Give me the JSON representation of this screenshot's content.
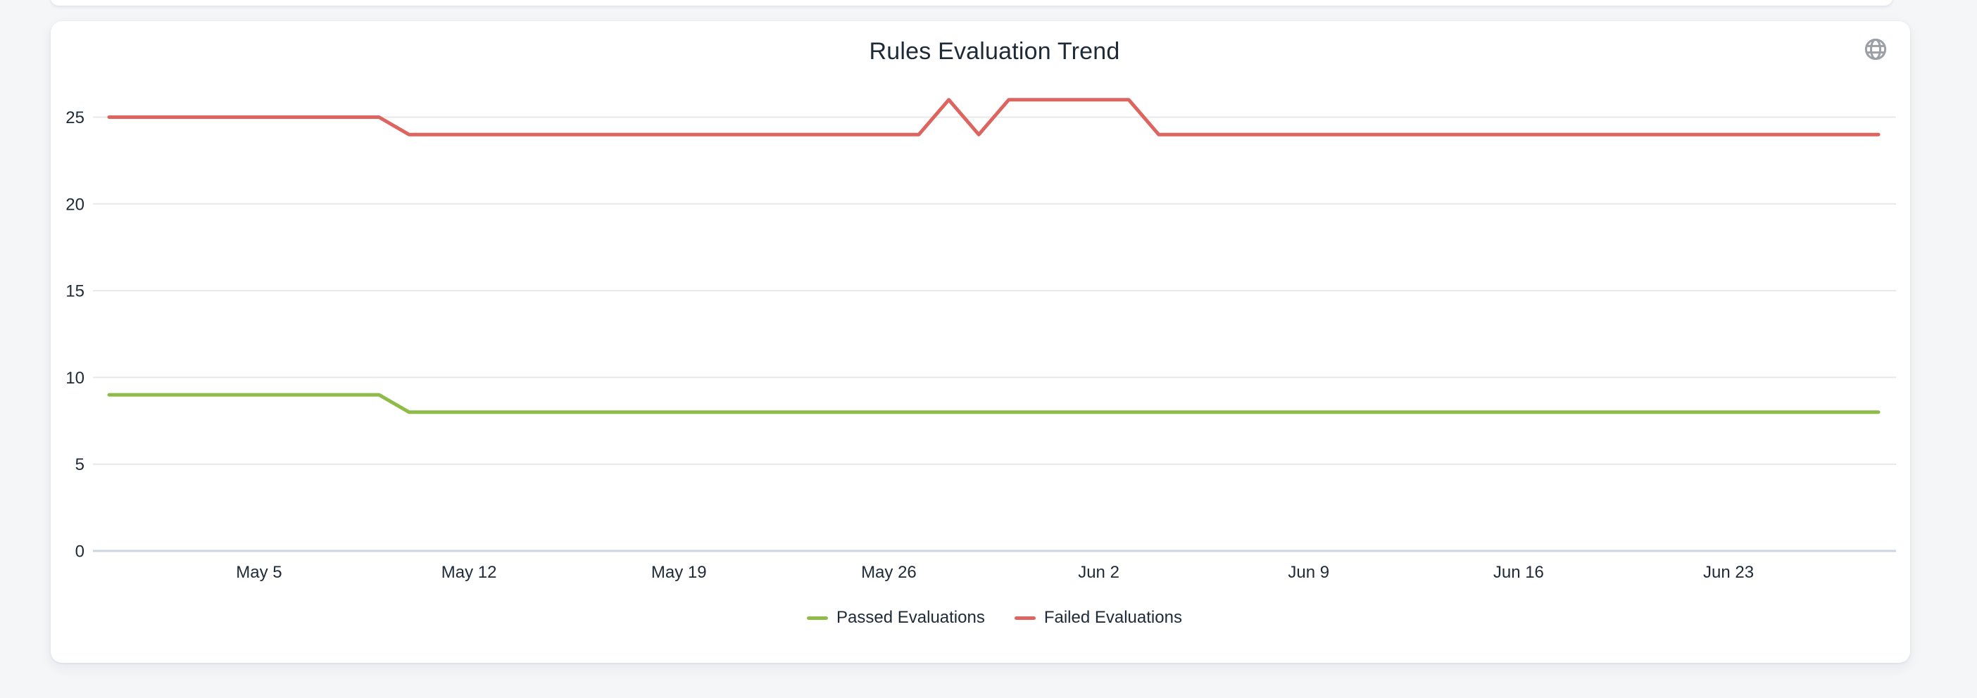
{
  "theme": {
    "page_background": "#f4f6f8",
    "card_background": "#ffffff",
    "text_color": "#1e2a38",
    "icon_color": "#9aa0a6"
  },
  "card": {
    "header_icon": "globe-icon"
  },
  "chart_data": {
    "type": "line",
    "title": "Rules Evaluation Trend",
    "xlabel": "",
    "ylabel": "",
    "grid": true,
    "legend_position": "bottom",
    "gridline_color": "#e8e8e8",
    "baseline_color": "#cbd6e2",
    "ylim": [
      0,
      26.5
    ],
    "yticks": [
      0,
      5,
      10,
      15,
      20,
      25
    ],
    "x": [
      "Apr 30",
      "May 1",
      "May 2",
      "May 3",
      "May 4",
      "May 5",
      "May 6",
      "May 7",
      "May 8",
      "May 9",
      "May 10",
      "May 11",
      "May 12",
      "May 13",
      "May 14",
      "May 15",
      "May 16",
      "May 17",
      "May 18",
      "May 19",
      "May 20",
      "May 21",
      "May 22",
      "May 23",
      "May 24",
      "May 25",
      "May 26",
      "May 27",
      "May 28",
      "May 29",
      "May 30",
      "May 31",
      "Jun 1",
      "Jun 2",
      "Jun 3",
      "Jun 4",
      "Jun 5",
      "Jun 6",
      "Jun 7",
      "Jun 8",
      "Jun 9",
      "Jun 10",
      "Jun 11",
      "Jun 12",
      "Jun 13",
      "Jun 14",
      "Jun 15",
      "Jun 16",
      "Jun 17",
      "Jun 18",
      "Jun 19",
      "Jun 20",
      "Jun 21",
      "Jun 22",
      "Jun 23",
      "Jun 24",
      "Jun 25",
      "Jun 26",
      "Jun 27",
      "Jun 28"
    ],
    "xticks": [
      {
        "index": 5,
        "label": "May 5"
      },
      {
        "index": 12,
        "label": "May 12"
      },
      {
        "index": 19,
        "label": "May 19"
      },
      {
        "index": 26,
        "label": "May 26"
      },
      {
        "index": 33,
        "label": "Jun 2"
      },
      {
        "index": 40,
        "label": "Jun 9"
      },
      {
        "index": 47,
        "label": "Jun 16"
      },
      {
        "index": 54,
        "label": "Jun 23"
      }
    ],
    "series": [
      {
        "id": "passed",
        "name": "Passed Evaluations",
        "color": "#8fbc49",
        "values": [
          9,
          9,
          9,
          9,
          9,
          9,
          9,
          9,
          9,
          9,
          8,
          8,
          8,
          8,
          8,
          8,
          8,
          8,
          8,
          8,
          8,
          8,
          8,
          8,
          8,
          8,
          8,
          8,
          8,
          8,
          8,
          8,
          8,
          8,
          8,
          8,
          8,
          8,
          8,
          8,
          8,
          8,
          8,
          8,
          8,
          8,
          8,
          8,
          8,
          8,
          8,
          8,
          8,
          8,
          8,
          8,
          8,
          8,
          8,
          8
        ]
      },
      {
        "id": "failed",
        "name": "Failed Evaluations",
        "color": "#dd645f",
        "values": [
          25,
          25,
          25,
          25,
          25,
          25,
          25,
          25,
          25,
          25,
          24,
          24,
          24,
          24,
          24,
          24,
          24,
          24,
          24,
          24,
          24,
          24,
          24,
          24,
          24,
          24,
          24,
          24,
          26,
          24,
          26,
          26,
          26,
          26,
          26,
          24,
          24,
          24,
          24,
          24,
          24,
          24,
          24,
          24,
          24,
          24,
          24,
          24,
          24,
          24,
          24,
          24,
          24,
          24,
          24,
          24,
          24,
          24,
          24,
          24
        ]
      }
    ]
  }
}
